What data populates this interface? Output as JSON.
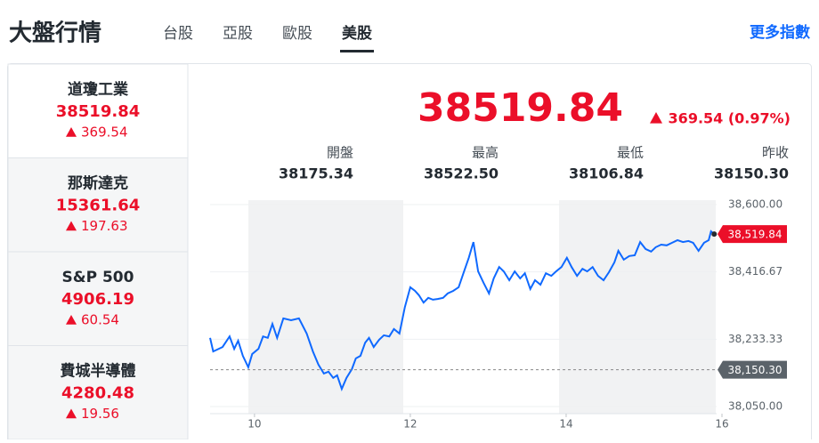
{
  "header": {
    "title": "大盤行情",
    "tabs": [
      "台股",
      "亞股",
      "歐股",
      "美股"
    ],
    "more_link": "更多指數"
  },
  "indices": [
    {
      "name": "道瓊工業",
      "price": "38519.84",
      "change": "369.54"
    },
    {
      "name": "那斯達克",
      "price": "15361.64",
      "change": "197.63"
    },
    {
      "name": "S&P 500",
      "price": "4906.19",
      "change": "60.54"
    },
    {
      "name": "費城半導體",
      "price": "4280.48",
      "change": "19.56"
    }
  ],
  "quote": {
    "price": "38519.84",
    "change": "369.54 (0.97%)",
    "stats": [
      {
        "label": "開盤",
        "value": "38175.34"
      },
      {
        "label": "最高",
        "value": "38522.50"
      },
      {
        "label": "最低",
        "value": "38106.84"
      },
      {
        "label": "昨收",
        "value": "38150.30"
      }
    ]
  },
  "chart_data": {
    "type": "line",
    "x": [
      9.43,
      9.47,
      9.59,
      9.68,
      9.74,
      9.79,
      9.85,
      9.92,
      9.97,
      10.05,
      10.11,
      10.17,
      10.23,
      10.29,
      10.37,
      10.47,
      10.57,
      10.67,
      10.75,
      10.82,
      10.89,
      10.95,
      11.01,
      11.06,
      11.12,
      11.18,
      11.25,
      11.3,
      11.36,
      11.42,
      11.47,
      11.53,
      11.6,
      11.66,
      11.73,
      11.79,
      11.86,
      11.93,
      12.0,
      12.06,
      12.11,
      12.17,
      12.23,
      12.29,
      12.35,
      12.42,
      12.48,
      12.55,
      12.62,
      12.69,
      12.75,
      12.81,
      12.87,
      12.94,
      13.01,
      13.07,
      13.14,
      13.2,
      13.27,
      13.34,
      13.41,
      13.47,
      13.54,
      13.6,
      13.67,
      13.74,
      13.81,
      13.87,
      13.94,
      14.01,
      14.07,
      14.14,
      14.21,
      14.27,
      14.34,
      14.41,
      14.48,
      14.55,
      14.62,
      14.67,
      14.74,
      14.81,
      14.88,
      14.95,
      15.02,
      15.09,
      15.15,
      15.22,
      15.29,
      15.36,
      15.43,
      15.5,
      15.57,
      15.63,
      15.7,
      15.77,
      15.83,
      15.86,
      15.9
    ],
    "series": [
      {
        "color": "#0f69ff",
        "values": [
          38237,
          38200,
          38212,
          38241,
          38207,
          38229,
          38188,
          38157,
          38193,
          38207,
          38241,
          38237,
          38275,
          38237,
          38290,
          38285,
          38290,
          38249,
          38200,
          38164,
          38140,
          38145,
          38128,
          38135,
          38098,
          38128,
          38152,
          38181,
          38188,
          38224,
          38237,
          38212,
          38232,
          38244,
          38241,
          38261,
          38249,
          38321,
          38375,
          38365,
          38353,
          38333,
          38346,
          38341,
          38343,
          38346,
          38358,
          38365,
          38375,
          38418,
          38455,
          38498,
          38418,
          38387,
          38358,
          38399,
          38430,
          38418,
          38394,
          38418,
          38399,
          38413,
          38370,
          38394,
          38382,
          38413,
          38406,
          38418,
          38430,
          38455,
          38430,
          38406,
          38425,
          38418,
          38430,
          38406,
          38394,
          38416,
          38443,
          38474,
          38450,
          38460,
          38462,
          38498,
          38479,
          38472,
          38484,
          38491,
          38489,
          38496,
          38503,
          38498,
          38501,
          38496,
          38474,
          38496,
          38503,
          38527,
          38519.84
        ]
      }
    ],
    "xlim": [
      9.43,
      16
    ],
    "xticks": [
      10,
      12,
      14,
      16
    ],
    "ylim": [
      38050,
      38600
    ],
    "yticks": [
      {
        "value": 38050,
        "label": "38,050.00"
      },
      {
        "value": 38233.33,
        "label": "38,233.33"
      },
      {
        "value": 38416.67,
        "label": "38,416.67"
      },
      {
        "value": 38600,
        "label": "38,600.00"
      }
    ],
    "grid": true,
    "last_price": {
      "value": 38519.84,
      "label": "38,519.84"
    },
    "previous_close": {
      "value": 38150.3,
      "label": "38,150.30"
    }
  }
}
